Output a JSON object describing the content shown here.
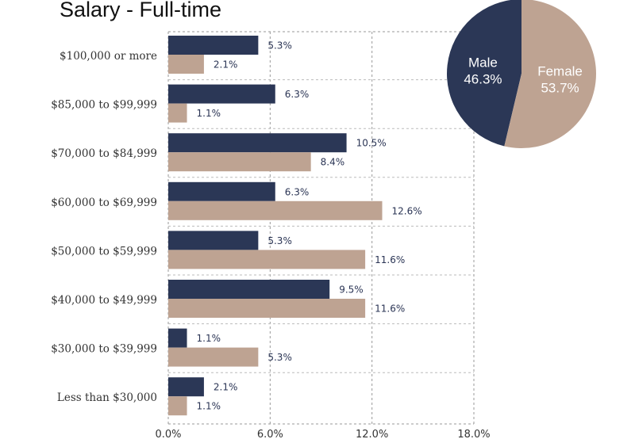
{
  "chart_data": [
    {
      "type": "bar",
      "orientation": "horizontal",
      "title": "Salary - Full-time",
      "categories": [
        "$100,000 or more",
        "$85,000 to $99,999",
        "$70,000 to $84,999",
        "$60,000 to $69,999",
        "$50,000 to $59,999",
        "$40,000 to $49,999",
        "$30,000 to $39,999",
        "Less than $30,000"
      ],
      "series": [
        {
          "color": "#2b3756",
          "values": [
            5.3,
            6.3,
            10.5,
            6.3,
            5.3,
            9.5,
            1.1,
            2.1
          ],
          "labels": [
            "5.3%",
            "6.3%",
            "10.5%",
            "6.3%",
            "5.3%",
            "9.5%",
            "1.1%",
            "2.1%"
          ]
        },
        {
          "color": "#bea392",
          "values": [
            2.1,
            1.1,
            8.4,
            12.6,
            11.6,
            11.6,
            5.3,
            1.1
          ],
          "labels": [
            "2.1%",
            "1.1%",
            "8.4%",
            "12.6%",
            "11.6%",
            "11.6%",
            "5.3%",
            "1.1%"
          ]
        }
      ],
      "xlim": [
        0,
        18
      ],
      "xticks": [
        "0.0%",
        "6.0%",
        "12.0%",
        "18.0%"
      ],
      "grid": true
    },
    {
      "type": "pie",
      "slices": [
        {
          "name": "Male",
          "value": 46.3,
          "label": "46.3%",
          "color": "#2b3756"
        },
        {
          "name": "Female",
          "value": 53.7,
          "label": "53.7%",
          "color": "#bea392"
        }
      ]
    }
  ]
}
